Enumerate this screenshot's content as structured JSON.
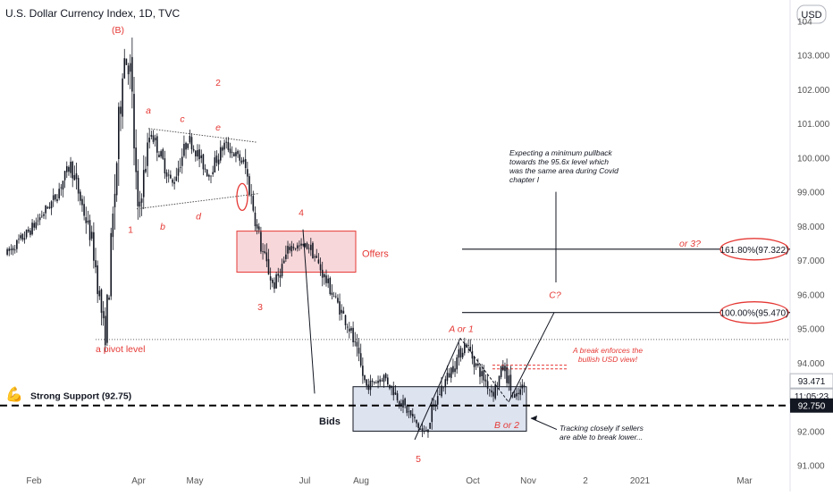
{
  "header": {
    "title": "U.S. Dollar Currency Index, 1D, TVC",
    "currency_button": "USD"
  },
  "theme": {
    "candle": "#131722",
    "annotation_red": "#e53935",
    "offers_fill": "#f8d7da",
    "offers_stroke": "#e53935",
    "bids_fill": "#dde3ef",
    "bids_stroke": "#131722",
    "price_tag_dark": "#131722",
    "axis_text": "#555555"
  },
  "chart_data": {
    "type": "candlestick",
    "symbol": "U.S. Dollar Currency Index",
    "timeframe": "1D",
    "source": "TVC",
    "ylim": [
      90.6,
      104.4
    ],
    "y_ticks": [
      "91.000",
      "92.000",
      "93.000",
      "94.000",
      "95.000",
      "96.000",
      "97.000",
      "98.000",
      "99.000",
      "100.000",
      "101.000",
      "102.000",
      "103.000"
    ],
    "top_tick_partial": "104",
    "x_ticks": [
      "Feb",
      "Apr",
      "May",
      "Jul",
      "Aug",
      "Oct",
      "Nov",
      "2",
      "2021",
      "Mar"
    ],
    "grid": false,
    "price_path": [
      {
        "date": "2020-01-15",
        "value": 97.2
      },
      {
        "date": "2020-01-28",
        "value": 97.9
      },
      {
        "date": "2020-02-10",
        "value": 98.8
      },
      {
        "date": "2020-02-19",
        "value": 99.8
      },
      {
        "date": "2020-03-02",
        "value": 97.5
      },
      {
        "date": "2020-03-09",
        "value": 94.7
      },
      {
        "date": "2020-03-12",
        "value": 97.0
      },
      {
        "date": "2020-03-19",
        "value": 103.0
      },
      {
        "date": "2020-03-23",
        "value": 102.5
      },
      {
        "date": "2020-03-27",
        "value": 98.3
      },
      {
        "date": "2020-04-03",
        "value": 100.8
      },
      {
        "date": "2020-04-15",
        "value": 99.2
      },
      {
        "date": "2020-04-24",
        "value": 100.6
      },
      {
        "date": "2020-05-05",
        "value": 99.5
      },
      {
        "date": "2020-05-14",
        "value": 100.4
      },
      {
        "date": "2020-05-25",
        "value": 99.8
      },
      {
        "date": "2020-06-03",
        "value": 97.4
      },
      {
        "date": "2020-06-10",
        "value": 96.2
      },
      {
        "date": "2020-06-19",
        "value": 97.4
      },
      {
        "date": "2020-06-30",
        "value": 97.4
      },
      {
        "date": "2020-07-08",
        "value": 96.5
      },
      {
        "date": "2020-07-22",
        "value": 95.0
      },
      {
        "date": "2020-07-31",
        "value": 93.3
      },
      {
        "date": "2020-08-10",
        "value": 93.6
      },
      {
        "date": "2020-08-20",
        "value": 92.8
      },
      {
        "date": "2020-09-01",
        "value": 91.9
      },
      {
        "date": "2020-09-10",
        "value": 93.2
      },
      {
        "date": "2020-09-24",
        "value": 94.6
      },
      {
        "date": "2020-09-30",
        "value": 93.9
      },
      {
        "date": "2020-10-09",
        "value": 93.1
      },
      {
        "date": "2020-10-15",
        "value": 93.9
      },
      {
        "date": "2020-10-21",
        "value": 92.9
      },
      {
        "date": "2020-10-27",
        "value": 93.4
      }
    ],
    "current_price": 93.471,
    "countdown": "11:05:23",
    "support_price": 92.75,
    "levels": [
      {
        "value": 97.322,
        "label": "161.80%(97.322)",
        "extra": "or 3?"
      },
      {
        "value": 95.47,
        "label": "100.00%(95.470)"
      },
      {
        "value": 94.68,
        "label": "a pivot level"
      },
      {
        "value": 92.75,
        "label": "Strong Support (92.75)"
      }
    ],
    "zones": [
      {
        "name": "Offers",
        "from": 96.65,
        "to": 97.85
      },
      {
        "name": "Bids",
        "from": 92.0,
        "to": 93.3
      }
    ],
    "wave_labels": [
      "(B)",
      "2",
      "a",
      "c",
      "e",
      "1",
      "b",
      "d",
      "4",
      "3",
      "5",
      "A or 1",
      "B or 2",
      "C?"
    ],
    "notes": {
      "expecting": "Expecting a minimum pullback towards the 95.6x level which was the same area during Covid chapter I",
      "break": "A break enforces the bullish USD view!",
      "tracking": "Tracking closely if sellers are able to break lower..."
    }
  }
}
